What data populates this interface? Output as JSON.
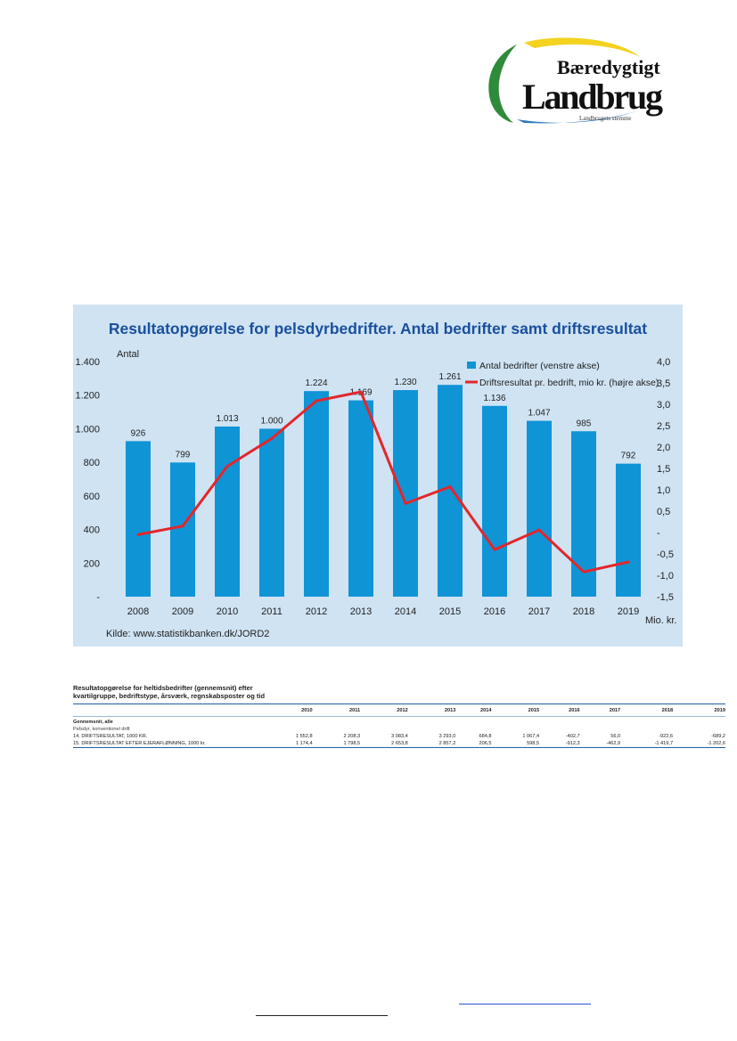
{
  "logo": {
    "line1": "Bæredygtigt",
    "line2": "Landbrug",
    "tagline": "Landbrugets stemme"
  },
  "chart_data": {
    "type": "bar",
    "title": "Resultatopgørelse for pelsdyrbedrifter. Antal bedrifter samt driftsresultat",
    "ylabel": "Antal",
    "y2label": "Mio. kr.",
    "source": "Kilde: www.statistikbanken.dk/JORD2",
    "categories": [
      "2008",
      "2009",
      "2010",
      "2011",
      "2012",
      "2013",
      "2014",
      "2015",
      "2016",
      "2017",
      "2018",
      "2019"
    ],
    "series": [
      {
        "name": "Antal bedrifter (venstre akse)",
        "type": "bar",
        "axis": "left",
        "color": "#0f94d6",
        "values": [
          926,
          799,
          1013,
          1000,
          1224,
          1169,
          1230,
          1261,
          1136,
          1047,
          985,
          792
        ],
        "labels": [
          "926",
          "799",
          "1.013",
          "1.000",
          "1.224",
          "1.169",
          "1.230",
          "1.261",
          "1.136",
          "1.047",
          "985",
          "792"
        ]
      },
      {
        "name": "Driftsresultat pr. bedrift, mio kr. (højre akse)",
        "type": "line",
        "axis": "right",
        "color": "#e3262b",
        "values": [
          -0.05,
          0.15,
          1.55,
          2.2,
          3.08,
          3.29,
          0.68,
          1.07,
          -0.4,
          0.06,
          -0.92,
          -0.69
        ]
      }
    ],
    "ylim": [
      0,
      1400
    ],
    "y_ticks": [
      0,
      200,
      400,
      600,
      800,
      1000,
      1200,
      1400
    ],
    "y_tick_labels": [
      "-",
      "200",
      "400",
      "600",
      "800",
      "1.000",
      "1.200",
      "1.400"
    ],
    "y2lim": [
      -1.5,
      4.0
    ],
    "y2_ticks": [
      -1.5,
      -1.0,
      -0.5,
      0,
      0.5,
      1.0,
      1.5,
      2.0,
      2.5,
      3.0,
      3.5,
      4.0
    ],
    "y2_tick_labels": [
      "-1,5",
      "-1,0",
      "-0,5",
      "-",
      "0,5",
      "1,0",
      "1,5",
      "2,0",
      "2,5",
      "3,0",
      "3,5",
      "4,0"
    ],
    "grid": false,
    "legend": "top-right",
    "colors": {
      "background": "#cfe3f3",
      "title": "#1a4f9c",
      "bar": "#0f94d6",
      "line": "#e3262b"
    }
  },
  "table": {
    "title_line1": "Resultatopgørelse for heltidsbedrifter (gennemsnit) efter",
    "title_line2": "kvartilgruppe, bedriftstype, årsværk, regnskabsposter og tid",
    "years": [
      "2010",
      "2011",
      "2012",
      "2013",
      "2014",
      "2015",
      "2016",
      "2017",
      "2018",
      "2019"
    ],
    "group": "Gennemsnit, alle",
    "subgroup": "Pelsdyr, konventionel drift",
    "rows": [
      {
        "label": "14. DRIFTSRESULTAT, 1000 KR.",
        "values": [
          "1 552,8",
          "2 208,3",
          "3 083,4",
          "3 293,0",
          "684,8",
          "1 067,4",
          "-402,7",
          "56,0",
          "-922,6",
          "-689,2"
        ]
      },
      {
        "label": "15. DRIFTSRESULTAT EFTER EJERAFLØNNING, 1000 kr.",
        "values": [
          "1 174,4",
          "1 798,5",
          "2 653,8",
          "2 857,2",
          "206,5",
          "598,5",
          "-912,3",
          "-462,9",
          "-1 419,7",
          "-1 202,6"
        ]
      }
    ]
  },
  "footer_colors": {
    "link": "#2f54d6",
    "rule": "#222222"
  }
}
